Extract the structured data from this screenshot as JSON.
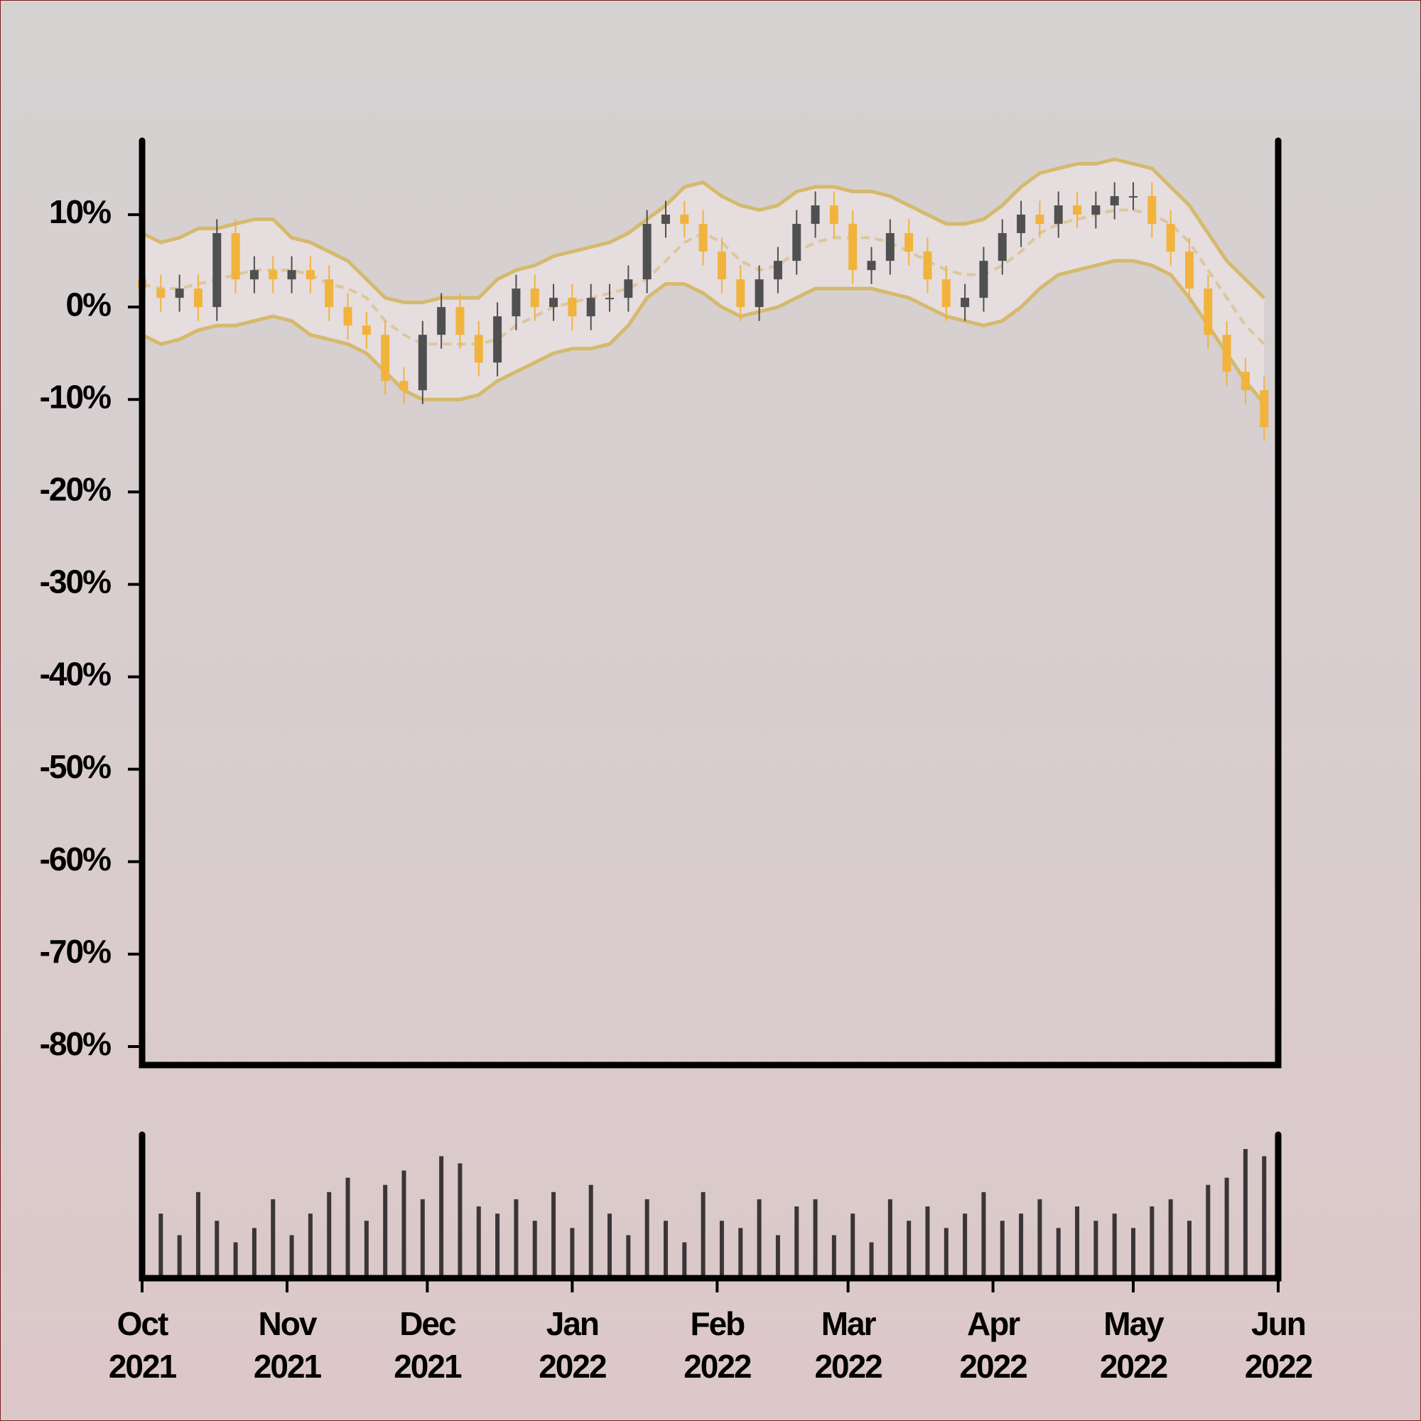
{
  "chart_data": {
    "type": "candlestick",
    "x": [
      0,
      4,
      8,
      12,
      16,
      20,
      24,
      28,
      32,
      36,
      40,
      44,
      48,
      52,
      56,
      60,
      64,
      68,
      72,
      76,
      80,
      84,
      88,
      92,
      96,
      100,
      104,
      108,
      112,
      116,
      120,
      124,
      128,
      132,
      136,
      140,
      144,
      148,
      152,
      156,
      160,
      164,
      168,
      172,
      176,
      180,
      184,
      188,
      192,
      196,
      200,
      204,
      208,
      212,
      216,
      220,
      224,
      228,
      232,
      236,
      240
    ],
    "open": [
      3,
      2,
      1,
      2,
      0,
      8,
      3,
      4,
      3,
      4,
      3,
      0,
      -2,
      -3,
      -8,
      -9,
      -3,
      0,
      -3,
      -6,
      -1,
      2,
      0,
      1,
      -1,
      1,
      1,
      3,
      9,
      10,
      9,
      6,
      3,
      0,
      3,
      5,
      9,
      11,
      9,
      4,
      5,
      8,
      6,
      3,
      0,
      1,
      5,
      8,
      10,
      9,
      11,
      10,
      11,
      12,
      12,
      9,
      6,
      2,
      -3,
      -7,
      -9
    ],
    "high": [
      4.5,
      3.5,
      3.5,
      3.5,
      9.5,
      9.5,
      5.5,
      5.5,
      5.5,
      5.5,
      4.5,
      1.5,
      -0.5,
      -1.5,
      -6.5,
      -1.5,
      1.5,
      1.5,
      -1.5,
      0.5,
      3.5,
      3.5,
      2.5,
      2.5,
      2.5,
      2.5,
      4.5,
      10.5,
      11.5,
      11.5,
      10.5,
      7.5,
      4.5,
      4.5,
      6.5,
      10.5,
      12.5,
      12.5,
      10.5,
      6.5,
      9.5,
      9.5,
      7.5,
      4.5,
      2.5,
      6.5,
      9.5,
      11.5,
      11.5,
      12.5,
      12.5,
      12.5,
      13.5,
      13.5,
      13.5,
      10.5,
      7.5,
      3.5,
      -1.5,
      -5.5,
      -7.5
    ],
    "low": [
      0.5,
      -0.5,
      -0.5,
      -1.5,
      -1.5,
      1.5,
      1.5,
      1.5,
      1.5,
      1.5,
      -1.5,
      -3.5,
      -4.5,
      -9.5,
      -10.5,
      -10.5,
      -4.5,
      -4.5,
      -7.5,
      -7.5,
      -2.5,
      -1.5,
      -1.5,
      -2.5,
      -2.5,
      -0.5,
      -0.5,
      1.5,
      7.5,
      7.5,
      4.5,
      1.5,
      -1.5,
      -1.5,
      1.5,
      3.5,
      7.5,
      7.5,
      2.5,
      2.5,
      3.5,
      4.5,
      1.5,
      -1.5,
      -1.5,
      -0.5,
      3.5,
      6.5,
      7.5,
      7.5,
      8.5,
      8.5,
      9.5,
      10.5,
      7.5,
      4.5,
      0.5,
      -4.5,
      -8.5,
      -10.5,
      -14.5
    ],
    "close": [
      2,
      1,
      2,
      0,
      8,
      3,
      4,
      3,
      4,
      3,
      0,
      -2,
      -3,
      -8,
      -9,
      -3,
      0,
      -3,
      -6,
      -1,
      2,
      0,
      1,
      -1,
      1,
      1,
      3,
      9,
      10,
      9,
      6,
      3,
      0,
      3,
      5,
      9,
      11,
      9,
      4,
      5,
      8,
      6,
      3,
      0,
      1,
      5,
      8,
      10,
      9,
      11,
      10,
      11,
      12,
      12,
      9,
      6,
      2,
      -3,
      -7,
      -9,
      -13
    ],
    "up_color": "#505050",
    "down_color": "#f2b33d",
    "bands": {
      "color": "#d6b96c",
      "upper": [
        8,
        7,
        7.5,
        8.5,
        8.5,
        9,
        9.5,
        9.5,
        7.5,
        7,
        6,
        5,
        3,
        1,
        0.5,
        0.5,
        1,
        1,
        1,
        3,
        4,
        4.5,
        5.5,
        6,
        6.5,
        7,
        8,
        9.5,
        11,
        13,
        13.5,
        12,
        11,
        10.5,
        11,
        12.5,
        13,
        13,
        12.5,
        12.5,
        12,
        11,
        10,
        9,
        9,
        9.5,
        11,
        13,
        14.5,
        15,
        15.5,
        15.5,
        16,
        15.5,
        15,
        13,
        11,
        8,
        5,
        3,
        1
      ],
      "middle": [
        2.5,
        2,
        2,
        2.5,
        3,
        3.5,
        4,
        4,
        4,
        3.5,
        2.5,
        2,
        1,
        -1.5,
        -3,
        -4,
        -4,
        -4,
        -4,
        -3.5,
        -2,
        -1,
        0,
        0.5,
        1,
        1.5,
        2,
        3,
        5,
        7,
        8,
        7,
        5,
        4,
        4.5,
        6,
        7,
        7.5,
        7.5,
        7.5,
        7,
        6,
        5,
        4,
        3.5,
        3.5,
        4.5,
        6,
        8,
        9,
        9.5,
        10,
        10.5,
        10.5,
        10,
        9,
        7,
        4,
        1,
        -2,
        -4
      ],
      "lower": [
        -3,
        -4,
        -3.5,
        -2.5,
        -2,
        -2,
        -1.5,
        -1,
        -1.5,
        -3,
        -3.5,
        -4,
        -5,
        -7,
        -9,
        -10,
        -10,
        -10,
        -9.5,
        -8,
        -7,
        -6,
        -5,
        -4.5,
        -4.5,
        -4,
        -2,
        1,
        2.5,
        2.5,
        1.5,
        0,
        -1,
        -0.5,
        0,
        1,
        2,
        2,
        2,
        2,
        1.5,
        1,
        0,
        -1,
        -1.5,
        -2,
        -1.5,
        0,
        2,
        3.5,
        4,
        4.5,
        5,
        5,
        4.5,
        3.5,
        1,
        -2,
        -5,
        -8,
        -10.5
      ]
    },
    "volume": {
      "color": "#3a3536",
      "ylim": [
        0,
        100
      ],
      "values": [
        50,
        45,
        30,
        60,
        40,
        25,
        35,
        55,
        30,
        45,
        60,
        70,
        40,
        65,
        75,
        55,
        85,
        80,
        50,
        45,
        55,
        40,
        60,
        35,
        65,
        45,
        30,
        55,
        40,
        25,
        60,
        40,
        35,
        55,
        30,
        50,
        55,
        30,
        45,
        25,
        55,
        40,
        50,
        35,
        45,
        60,
        40,
        45,
        55,
        35,
        50,
        40,
        45,
        35,
        50,
        55,
        40,
        65,
        70,
        90,
        85
      ]
    },
    "xlim": [
      0,
      243
    ],
    "xticks": [
      {
        "value": 0,
        "label": "Oct 2021"
      },
      {
        "value": 31,
        "label": "Nov 2021"
      },
      {
        "value": 61,
        "label": "Dec 2021"
      },
      {
        "value": 92,
        "label": "Jan 2022"
      },
      {
        "value": 123,
        "label": "Feb 2022"
      },
      {
        "value": 151,
        "label": "Mar 2022"
      },
      {
        "value": 182,
        "label": "Apr 2022"
      },
      {
        "value": 212,
        "label": "May 2022"
      },
      {
        "value": 243,
        "label": "Jun 2022"
      }
    ],
    "ylim": [
      -82,
      18
    ],
    "yticks": [
      {
        "value": 10,
        "label": "10%"
      },
      {
        "value": 0,
        "label": "0%"
      },
      {
        "value": -10,
        "label": "-10%"
      },
      {
        "value": -20,
        "label": "-20%"
      },
      {
        "value": -30,
        "label": "-30%"
      },
      {
        "value": -40,
        "label": "-40%"
      },
      {
        "value": -50,
        "label": "-50%"
      },
      {
        "value": -60,
        "label": "-60%"
      },
      {
        "value": -70,
        "label": "-70%"
      },
      {
        "value": -80,
        "label": "-80%"
      }
    ]
  }
}
